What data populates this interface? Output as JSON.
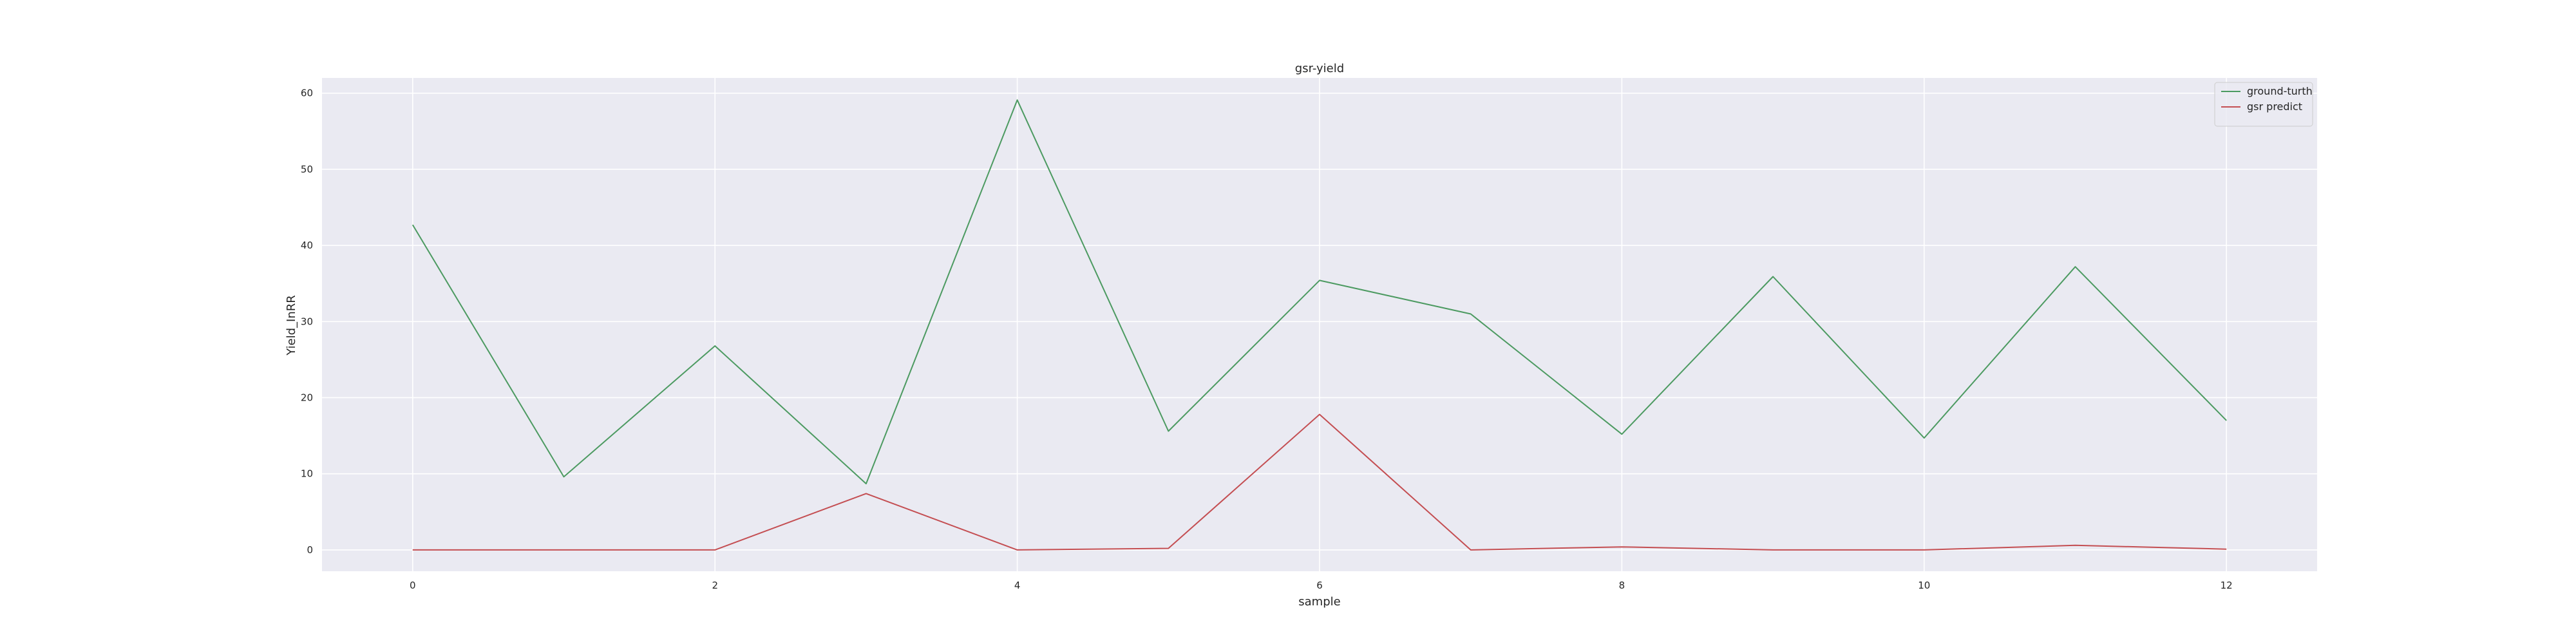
{
  "chart_data": {
    "type": "line",
    "title": "gsr-yield",
    "xlabel": "sample",
    "ylabel": "Yield_InRR",
    "x": [
      0,
      1,
      2,
      3,
      4,
      5,
      6,
      7,
      8,
      9,
      10,
      11,
      12
    ],
    "xlim": [
      -0.6,
      12.6
    ],
    "ylim": [
      -2.8,
      62
    ],
    "xticks": [
      0,
      2,
      4,
      6,
      8,
      10,
      12
    ],
    "yticks": [
      0,
      10,
      20,
      30,
      40,
      50,
      60
    ],
    "grid": true,
    "legend_position": "top-right",
    "series": [
      {
        "name": "ground-turth",
        "color": "#4c9a61",
        "values": [
          42.7,
          9.6,
          26.8,
          8.7,
          59.1,
          15.6,
          35.4,
          31.0,
          15.2,
          35.9,
          14.7,
          37.2,
          17.0
        ]
      },
      {
        "name": "gsr predict",
        "color": "#c44e52",
        "values": [
          0.0,
          0.0,
          0.0,
          7.4,
          0.0,
          0.2,
          17.8,
          0.0,
          0.4,
          0.0,
          0.0,
          0.6,
          0.1
        ]
      }
    ],
    "colors": {
      "plot_background": "#eaeaf2",
      "grid": "#ffffff",
      "text": "#262626"
    }
  }
}
